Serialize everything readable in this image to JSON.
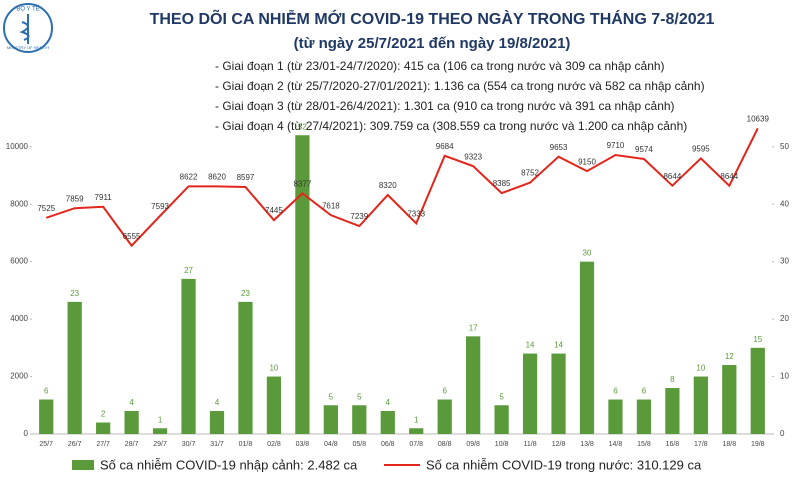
{
  "logo": {
    "top": "BỘ Y TẾ",
    "bottom": "MINISTRY OF HEALTH"
  },
  "chart_data": {
    "type": "combo",
    "title": "THEO DÕI CA NHIỄM MỚI COVID-19 THEO NGÀY TRONG THÁNG 7-8/2021",
    "subtitle": "(từ ngày 25/7/2021 đến ngày 19/8/2021)",
    "annotations": [
      "- Giai đoạn 1 (từ 23/01-24/7/2020): 415 ca (106 ca trong nước và 309 ca nhập cảnh)",
      "- Giai đoạn 2 (từ 25/7/2020-27/01/2021): 1.136 ca (554 ca trong nước và 582 ca nhập cảnh)",
      "- Giai đoạn 3 (từ 28/01-26/4/2021): 1.301 ca (910 ca trong nước và 391 ca nhập cảnh)",
      "- Giai đoạn 4 (từ 27/4/2021): 309.759 ca (308.559 ca trong nước và 1.200 ca nhập cảnh)"
    ],
    "categories": [
      "25/7",
      "26/7",
      "27/7",
      "28/7",
      "29/7",
      "30/7",
      "31/7",
      "01/8",
      "02/8",
      "03/8",
      "04/8",
      "05/8",
      "06/8",
      "07/8",
      "08/8",
      "09/8",
      "10/8",
      "11/8",
      "12/8",
      "13/8",
      "14/8",
      "15/8",
      "16/8",
      "17/8",
      "18/8",
      "19/8"
    ],
    "series": [
      {
        "name": "Số ca nhiễm COVID-19 nhập cảnh: 2.482 ca",
        "type": "bar",
        "axis": "y2",
        "color": "#5a9a3a",
        "values": [
          6,
          23,
          2,
          4,
          1,
          27,
          4,
          23,
          10,
          52,
          5,
          5,
          4,
          1,
          6,
          17,
          5,
          14,
          14,
          30,
          6,
          6,
          8,
          10,
          12,
          15
        ]
      },
      {
        "name": "Số ca nhiễm COVID-19 trong nước: 310.129 ca",
        "type": "line",
        "color": "#e3261c",
        "values": [
          7525,
          7859,
          7911,
          6555,
          7593,
          8622,
          8620,
          8597,
          7445,
          8377,
          7618,
          7239,
          8320,
          7333,
          9684,
          9323,
          8385,
          8752,
          9653,
          9150,
          9710,
          9574,
          8644,
          9595,
          8644,
          10639
        ]
      }
    ],
    "ylim": [
      0,
      11000
    ],
    "yticks": [
      0,
      2000,
      4000,
      6000,
      8000,
      10000
    ],
    "y2lim": [
      0,
      55
    ],
    "y2ticks": [
      0,
      10,
      20,
      30,
      40,
      50
    ]
  }
}
